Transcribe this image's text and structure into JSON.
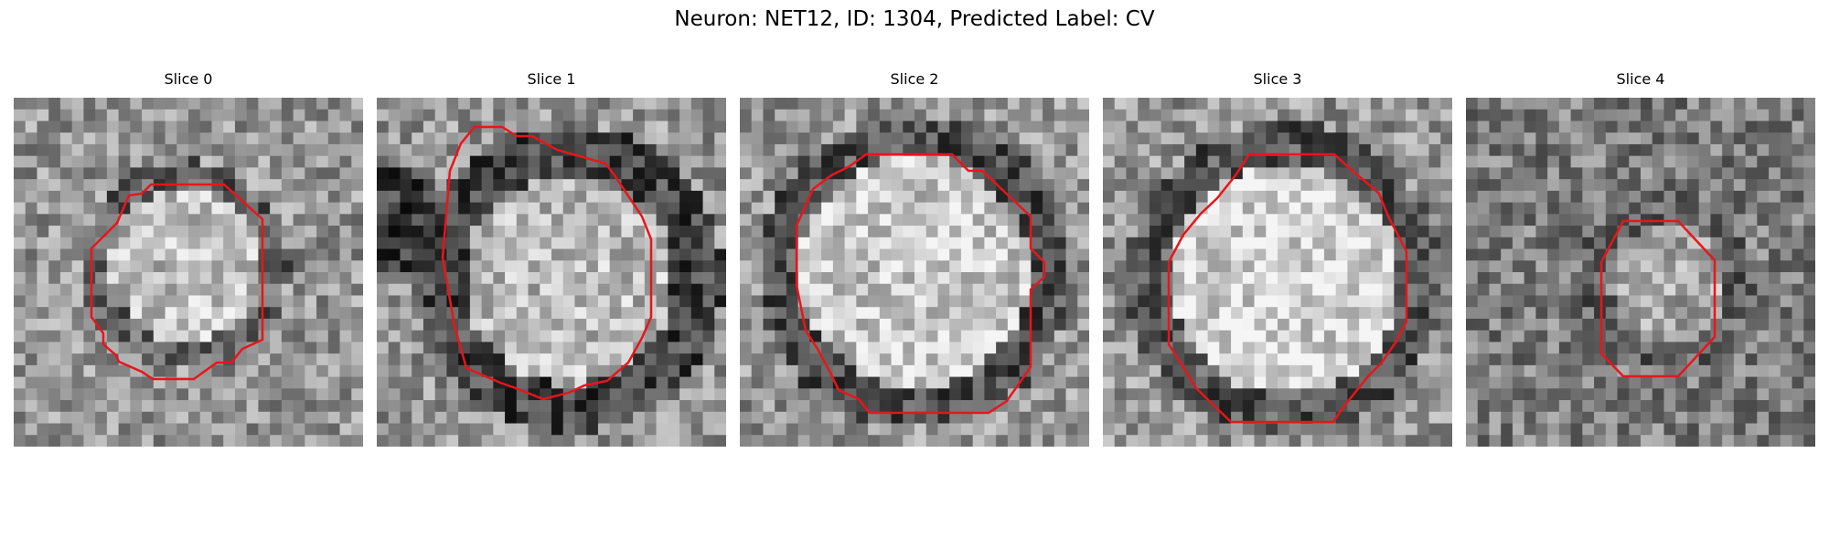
{
  "figure": {
    "title": "Neuron: NET12, ID: 1304, Predicted Label: CV"
  },
  "panels": [
    {
      "title": "Slice 0",
      "brightness_profile": "bright-center-dark-ring-small"
    },
    {
      "title": "Slice 1",
      "brightness_profile": "bright-center-dark-ring-large-dark-left"
    },
    {
      "title": "Slice 2",
      "brightness_profile": "bright-center-dark-ring-large"
    },
    {
      "title": "Slice 3",
      "brightness_profile": "bright-center-dark-ring-large-bright"
    },
    {
      "title": "Slice 4",
      "brightness_profile": "faint-center-small"
    }
  ],
  "colors": {
    "contour": "#e8151b",
    "image_colormap": "gray"
  }
}
